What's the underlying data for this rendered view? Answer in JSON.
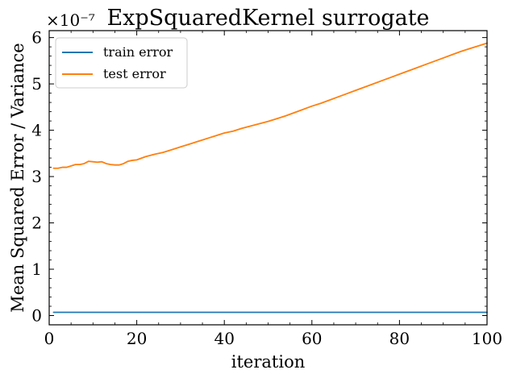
{
  "chart_data": {
    "type": "line",
    "title": "ExpSquaredKernel surrogate",
    "xlabel": "iteration",
    "ylabel": "Mean Squared Error / Variance",
    "y_offset_label": "×10⁻⁷",
    "y_scale_factor": 1e-07,
    "xlim": [
      0,
      100
    ],
    "ylim": [
      -0.2,
      6.15
    ],
    "x_ticks": [
      0,
      20,
      40,
      60,
      80,
      100
    ],
    "y_ticks": [
      0,
      1,
      2,
      3,
      4,
      5,
      6
    ],
    "grid": false,
    "legend_position": "upper-left",
    "series": [
      {
        "name": "train error",
        "color": "#1f77b4",
        "x": [
          1,
          10,
          20,
          30,
          40,
          50,
          60,
          70,
          80,
          90,
          100
        ],
        "y": [
          0.07,
          0.07,
          0.07,
          0.07,
          0.07,
          0.07,
          0.07,
          0.07,
          0.07,
          0.07,
          0.07
        ]
      },
      {
        "name": "test error",
        "color": "#ff7f0e",
        "x": [
          1,
          2,
          3,
          4,
          5,
          6,
          7,
          8,
          9,
          10,
          11,
          12,
          13,
          14,
          15,
          16,
          17,
          18,
          19,
          20,
          22,
          24,
          26,
          28,
          30,
          32,
          34,
          36,
          38,
          40,
          42,
          44,
          46,
          48,
          50,
          52,
          54,
          56,
          58,
          60,
          62,
          64,
          66,
          68,
          70,
          72,
          74,
          76,
          78,
          80,
          82,
          84,
          86,
          88,
          90,
          92,
          94,
          96,
          98,
          100
        ],
        "y": [
          3.18,
          3.18,
          3.2,
          3.2,
          3.23,
          3.26,
          3.26,
          3.28,
          3.33,
          3.32,
          3.31,
          3.32,
          3.28,
          3.26,
          3.25,
          3.25,
          3.28,
          3.33,
          3.35,
          3.36,
          3.43,
          3.48,
          3.52,
          3.58,
          3.64,
          3.7,
          3.76,
          3.82,
          3.88,
          3.94,
          3.98,
          4.04,
          4.09,
          4.14,
          4.19,
          4.25,
          4.31,
          4.38,
          4.45,
          4.52,
          4.58,
          4.65,
          4.72,
          4.79,
          4.86,
          4.93,
          5.0,
          5.07,
          5.14,
          5.21,
          5.28,
          5.35,
          5.42,
          5.49,
          5.56,
          5.63,
          5.7,
          5.76,
          5.82,
          5.88
        ]
      }
    ]
  }
}
